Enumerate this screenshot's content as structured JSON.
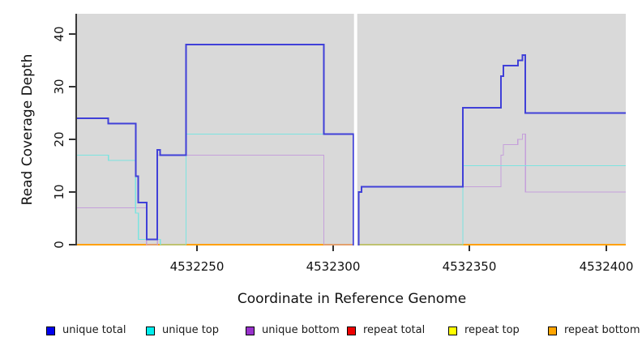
{
  "chart_data": {
    "type": "line",
    "subtype": "step-coverage-plot",
    "title": "",
    "xlabel": "Coordinate in Reference Genome",
    "ylabel": "Read Coverage Depth",
    "xlim": [
      4532205.5,
      4532406.8
    ],
    "ylim": [
      0,
      44
    ],
    "grid": "off",
    "panel_bg": "#d9d9d9",
    "x_ticks": [
      {
        "label": "4532250",
        "value": 4532250
      },
      {
        "label": "4532300",
        "value": 4532300
      },
      {
        "label": "4532350",
        "value": 4532350
      },
      {
        "label": "4532400",
        "value": 4532400
      }
    ],
    "y_ticks": [
      {
        "label": "0",
        "value": 0
      },
      {
        "label": "10",
        "value": 10
      },
      {
        "label": "20",
        "value": 20
      },
      {
        "label": "30",
        "value": 30
      },
      {
        "label": "40",
        "value": 40
      }
    ],
    "gap_region": {
      "x_start": 4532307.1,
      "x_end": 4532308.3,
      "note": "white vertical stripe, no data"
    },
    "legend_position": "bottom",
    "legend": [
      {
        "label": "unique total",
        "color": "#0000EE"
      },
      {
        "label": "unique top",
        "color": "#00EEEE"
      },
      {
        "label": "unique bottom",
        "color": "#9932CC"
      },
      {
        "label": "repeat total",
        "color": "#EE0000"
      },
      {
        "label": "repeat top",
        "color": "#FFFF00"
      },
      {
        "label": "repeat bottom",
        "color": "#FFA500"
      }
    ],
    "series": [
      {
        "name": "unique total",
        "line_color": "#4040D8",
        "line_width": 2,
        "segments": [
          {
            "steps": [
              [
                4532205.5,
                24
              ],
              [
                4532217,
                23
              ],
              [
                4532227,
                13
              ],
              [
                4532228,
                8
              ],
              [
                4532231,
                1
              ],
              [
                4532235,
                18
              ],
              [
                4532236,
                17
              ],
              [
                4532245.5,
                38
              ],
              [
                4532296,
                21
              ],
              [
                4532306.9,
                0
              ]
            ],
            "end": 4532307.2
          },
          {
            "steps": [
              [
                4532308.6,
                0
              ],
              [
                4532308.8,
                10
              ],
              [
                4532309.8,
                11
              ],
              [
                4532347,
                26
              ],
              [
                4532361,
                32
              ],
              [
                4532361.9,
                34
              ],
              [
                4532367.2,
                35
              ],
              [
                4532368.9,
                36
              ],
              [
                4532370,
                25
              ]
            ],
            "end": 4532406.8
          }
        ]
      },
      {
        "name": "unique top",
        "line_color": "#7CE4E0",
        "line_width": 1.3,
        "segments": [
          {
            "steps": [
              [
                4532205.5,
                17
              ],
              [
                4532217,
                16
              ],
              [
                4532227,
                6
              ],
              [
                4532228,
                1
              ],
              [
                4532236,
                0
              ],
              [
                4532245.5,
                21
              ],
              [
                4532306.9,
                0
              ]
            ],
            "end": 4532307.2
          },
          {
            "steps": [
              [
                4532308.6,
                0
              ],
              [
                4532347,
                15
              ]
            ],
            "end": 4532406.8
          }
        ]
      },
      {
        "name": "unique bottom",
        "line_color": "#C5A0DA",
        "line_width": 1.3,
        "segments": [
          {
            "steps": [
              [
                4532205.5,
                7
              ],
              [
                4532231,
                0
              ],
              [
                4532235,
                17
              ],
              [
                4532296,
                0
              ]
            ],
            "end": 4532307.2
          },
          {
            "steps": [
              [
                4532308.6,
                0
              ],
              [
                4532308.8,
                10
              ],
              [
                4532309.8,
                11
              ],
              [
                4532361,
                17
              ],
              [
                4532361.9,
                19
              ],
              [
                4532367.2,
                20
              ],
              [
                4532368.9,
                21
              ],
              [
                4532370,
                10
              ]
            ],
            "end": 4532406.8
          }
        ]
      },
      {
        "name": "repeat total",
        "line_color": "#CC0000",
        "line_width": 1.3,
        "segments": [
          {
            "steps": [
              [
                4532205.5,
                0
              ]
            ],
            "end": 4532307.2
          },
          {
            "steps": [
              [
                4532308.6,
                0
              ]
            ],
            "end": 4532406.8
          }
        ]
      },
      {
        "name": "repeat top",
        "line_color": "#F2F200",
        "line_width": 1.3,
        "segments": [
          {
            "steps": [
              [
                4532205.5,
                0
              ]
            ],
            "end": 4532307.2
          },
          {
            "steps": [
              [
                4532308.6,
                0
              ]
            ],
            "end": 4532406.8
          }
        ]
      },
      {
        "name": "repeat bottom",
        "line_color": "#FFA000",
        "line_width": 1.8,
        "segments": [
          {
            "steps": [
              [
                4532205.5,
                0
              ]
            ],
            "end": 4532307.2
          },
          {
            "steps": [
              [
                4532308.6,
                0
              ]
            ],
            "end": 4532406.8
          }
        ]
      }
    ]
  }
}
